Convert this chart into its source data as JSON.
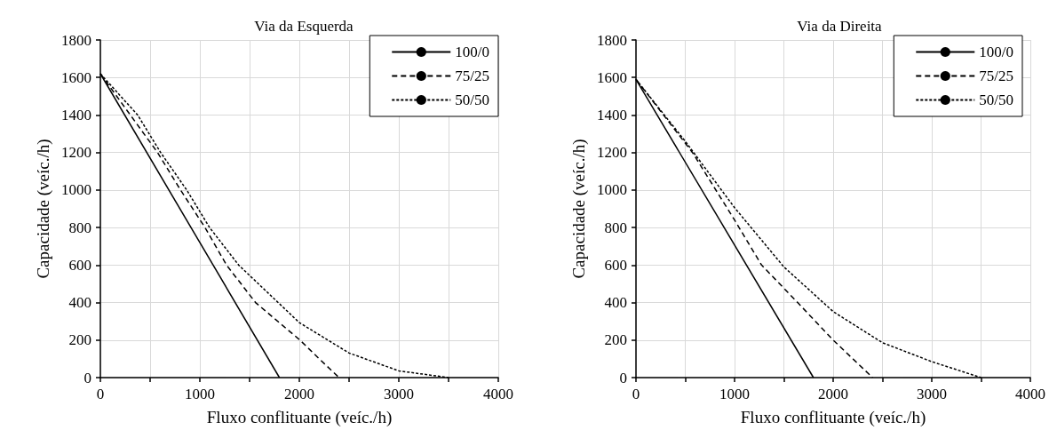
{
  "chart_data": [
    {
      "type": "line",
      "title": "Via da Esquerda",
      "xlabel": "Fluxo conflituante (veíc./h)",
      "ylabel": "Capacidade (veíc./h)",
      "xlim": [
        0,
        4000
      ],
      "xticks": [
        0,
        {
          "value": 500,
          "label": null
        },
        1000,
        {
          "value": 1500,
          "label": null
        },
        2000,
        {
          "value": 2500,
          "label": null
        },
        3000,
        {
          "value": 3500,
          "label": null
        },
        4000
      ],
      "ylim": [
        0,
        1800
      ],
      "yticks": [
        0,
        200,
        400,
        600,
        800,
        1000,
        1200,
        1400,
        1600,
        1800
      ],
      "grid": true,
      "legend": "top right",
      "marker": "none",
      "series": [
        {
          "name": "100/0",
          "color": "#000000",
          "line_style": "solid",
          "x": [
            0,
            1800
          ],
          "values": [
            1620,
            0
          ]
        },
        {
          "name": "75/25",
          "color": "#000000",
          "line_style": "dashed",
          "x": [
            0,
            575,
            806,
            1052,
            1268,
            1560,
            2006,
            2200,
            2400
          ],
          "values": [
            1620,
            1200,
            1000,
            800,
            600,
            400,
            200,
            100,
            0
          ]
        },
        {
          "name": "50/50",
          "color": "#000000",
          "line_style": "dotted",
          "x": [
            0,
            375,
            606,
            868,
            1098,
            1390,
            2000,
            2500,
            3000,
            3500
          ],
          "values": [
            1620,
            1400,
            1200,
            1000,
            800,
            600,
            293,
            131,
            36,
            0
          ]
        }
      ]
    },
    {
      "type": "line",
      "title": "Via da Direita",
      "xlabel": "Fluxo conflituante (veíc./h)",
      "ylabel": "Capacidade (veíc./h)",
      "xlim": [
        0,
        4000
      ],
      "xticks": [
        0,
        {
          "value": 500,
          "label": null
        },
        1000,
        {
          "value": 1500,
          "label": null
        },
        2000,
        {
          "value": 2500,
          "label": null
        },
        3000,
        {
          "value": 3500,
          "label": null
        },
        4000
      ],
      "ylim": [
        0,
        1800
      ],
      "yticks": [
        0,
        200,
        400,
        600,
        800,
        1000,
        1200,
        1400,
        1600,
        1800
      ],
      "grid": true,
      "legend": "top right",
      "marker": "none",
      "series": [
        {
          "name": "100/0",
          "color": "#000000",
          "line_style": "solid",
          "x": [
            0,
            1800
          ],
          "values": [
            1590,
            0
          ]
        },
        {
          "name": "75/25",
          "color": "#000000",
          "line_style": "dashed",
          "x": [
            0,
            573,
            1000,
            1274,
            1640,
            2000,
            2400
          ],
          "values": [
            1590,
            1200,
            840,
            600,
            400,
            200,
            0
          ]
        },
        {
          "name": "50/50",
          "color": "#000000",
          "line_style": "dotted",
          "x": [
            0,
            500,
            1000,
            1500,
            2000,
            2500,
            3000,
            3500
          ],
          "values": [
            1590,
            1260,
            906,
            590,
            352,
            186,
            85,
            0
          ]
        }
      ]
    }
  ]
}
